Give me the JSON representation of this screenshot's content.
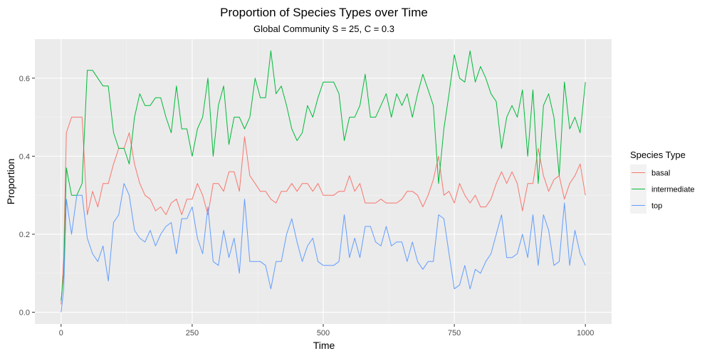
{
  "chart_data": {
    "type": "line",
    "title": "Proportion of Species Types over Time",
    "subtitle": "Global Community S = 25, C = 0.3",
    "xlabel": "Time",
    "ylabel": "Proportion",
    "xlim": [
      -50,
      1050
    ],
    "ylim": [
      -0.03,
      0.7
    ],
    "x_ticks": [
      0,
      250,
      500,
      750,
      1000
    ],
    "y_ticks": [
      0.0,
      0.2,
      0.4,
      0.6
    ],
    "x_tick_labels": [
      "0",
      "250",
      "500",
      "750",
      "1000"
    ],
    "y_tick_labels": [
      "0.0",
      "0.2",
      "0.4",
      "0.6"
    ],
    "grid": true,
    "legend_title": "Species Type",
    "legend_position": "right",
    "panel_background": "#ebebeb",
    "series": [
      {
        "name": "basal",
        "color": "#f8766d",
        "points": [
          [
            0,
            0.02
          ],
          [
            5,
            0.14
          ],
          [
            10,
            0.46
          ],
          [
            20,
            0.5
          ],
          [
            30,
            0.5
          ],
          [
            40,
            0.5
          ],
          [
            50,
            0.25
          ],
          [
            60,
            0.31
          ],
          [
            70,
            0.27
          ],
          [
            80,
            0.33
          ],
          [
            90,
            0.33
          ],
          [
            100,
            0.38
          ],
          [
            110,
            0.42
          ],
          [
            120,
            0.42
          ],
          [
            130,
            0.46
          ],
          [
            140,
            0.38
          ],
          [
            150,
            0.33
          ],
          [
            160,
            0.3
          ],
          [
            170,
            0.29
          ],
          [
            180,
            0.26
          ],
          [
            190,
            0.27
          ],
          [
            200,
            0.25
          ],
          [
            210,
            0.28
          ],
          [
            220,
            0.29
          ],
          [
            230,
            0.25
          ],
          [
            240,
            0.29
          ],
          [
            250,
            0.29
          ],
          [
            260,
            0.33
          ],
          [
            270,
            0.3
          ],
          [
            280,
            0.25
          ],
          [
            290,
            0.33
          ],
          [
            300,
            0.33
          ],
          [
            310,
            0.31
          ],
          [
            320,
            0.36
          ],
          [
            330,
            0.36
          ],
          [
            340,
            0.31
          ],
          [
            350,
            0.45
          ],
          [
            360,
            0.35
          ],
          [
            370,
            0.33
          ],
          [
            380,
            0.31
          ],
          [
            390,
            0.31
          ],
          [
            400,
            0.29
          ],
          [
            410,
            0.28
          ],
          [
            420,
            0.31
          ],
          [
            430,
            0.31
          ],
          [
            440,
            0.33
          ],
          [
            450,
            0.31
          ],
          [
            460,
            0.33
          ],
          [
            470,
            0.33
          ],
          [
            480,
            0.31
          ],
          [
            490,
            0.33
          ],
          [
            500,
            0.3
          ],
          [
            510,
            0.3
          ],
          [
            520,
            0.3
          ],
          [
            530,
            0.31
          ],
          [
            540,
            0.31
          ],
          [
            550,
            0.35
          ],
          [
            560,
            0.31
          ],
          [
            570,
            0.33
          ],
          [
            580,
            0.28
          ],
          [
            590,
            0.28
          ],
          [
            600,
            0.28
          ],
          [
            610,
            0.29
          ],
          [
            620,
            0.28
          ],
          [
            630,
            0.28
          ],
          [
            640,
            0.28
          ],
          [
            650,
            0.29
          ],
          [
            660,
            0.31
          ],
          [
            670,
            0.31
          ],
          [
            680,
            0.3
          ],
          [
            690,
            0.27
          ],
          [
            700,
            0.3
          ],
          [
            710,
            0.34
          ],
          [
            720,
            0.4
          ],
          [
            730,
            0.3
          ],
          [
            740,
            0.31
          ],
          [
            750,
            0.28
          ],
          [
            760,
            0.33
          ],
          [
            770,
            0.3
          ],
          [
            780,
            0.28
          ],
          [
            790,
            0.3
          ],
          [
            800,
            0.27
          ],
          [
            810,
            0.27
          ],
          [
            820,
            0.29
          ],
          [
            830,
            0.33
          ],
          [
            840,
            0.36
          ],
          [
            850,
            0.33
          ],
          [
            860,
            0.36
          ],
          [
            870,
            0.33
          ],
          [
            880,
            0.26
          ],
          [
            890,
            0.33
          ],
          [
            900,
            0.33
          ],
          [
            910,
            0.42
          ],
          [
            920,
            0.35
          ],
          [
            930,
            0.31
          ],
          [
            940,
            0.34
          ],
          [
            950,
            0.35
          ],
          [
            960,
            0.29
          ],
          [
            970,
            0.33
          ],
          [
            980,
            0.35
          ],
          [
            990,
            0.38
          ],
          [
            1000,
            0.3
          ]
        ]
      },
      {
        "name": "intermediate",
        "color": "#00ba38",
        "points": [
          [
            0,
            0.03
          ],
          [
            5,
            0.1
          ],
          [
            10,
            0.37
          ],
          [
            20,
            0.3
          ],
          [
            30,
            0.3
          ],
          [
            40,
            0.33
          ],
          [
            50,
            0.62
          ],
          [
            60,
            0.62
          ],
          [
            70,
            0.6
          ],
          [
            80,
            0.58
          ],
          [
            90,
            0.58
          ],
          [
            100,
            0.46
          ],
          [
            110,
            0.42
          ],
          [
            120,
            0.42
          ],
          [
            130,
            0.38
          ],
          [
            140,
            0.5
          ],
          [
            150,
            0.56
          ],
          [
            160,
            0.53
          ],
          [
            170,
            0.53
          ],
          [
            180,
            0.55
          ],
          [
            190,
            0.55
          ],
          [
            200,
            0.5
          ],
          [
            210,
            0.46
          ],
          [
            220,
            0.58
          ],
          [
            230,
            0.47
          ],
          [
            240,
            0.47
          ],
          [
            250,
            0.4
          ],
          [
            260,
            0.47
          ],
          [
            270,
            0.5
          ],
          [
            280,
            0.6
          ],
          [
            290,
            0.4
          ],
          [
            300,
            0.53
          ],
          [
            310,
            0.58
          ],
          [
            320,
            0.43
          ],
          [
            330,
            0.5
          ],
          [
            340,
            0.5
          ],
          [
            350,
            0.47
          ],
          [
            360,
            0.5
          ],
          [
            370,
            0.6
          ],
          [
            380,
            0.55
          ],
          [
            390,
            0.55
          ],
          [
            400,
            0.67
          ],
          [
            410,
            0.56
          ],
          [
            420,
            0.58
          ],
          [
            430,
            0.53
          ],
          [
            440,
            0.47
          ],
          [
            450,
            0.44
          ],
          [
            460,
            0.46
          ],
          [
            470,
            0.53
          ],
          [
            480,
            0.5
          ],
          [
            490,
            0.55
          ],
          [
            500,
            0.59
          ],
          [
            510,
            0.59
          ],
          [
            520,
            0.59
          ],
          [
            530,
            0.56
          ],
          [
            540,
            0.44
          ],
          [
            550,
            0.5
          ],
          [
            560,
            0.5
          ],
          [
            570,
            0.53
          ],
          [
            580,
            0.61
          ],
          [
            590,
            0.5
          ],
          [
            600,
            0.5
          ],
          [
            610,
            0.53
          ],
          [
            620,
            0.56
          ],
          [
            630,
            0.5
          ],
          [
            640,
            0.56
          ],
          [
            650,
            0.53
          ],
          [
            660,
            0.56
          ],
          [
            670,
            0.5
          ],
          [
            680,
            0.56
          ],
          [
            690,
            0.61
          ],
          [
            700,
            0.57
          ],
          [
            710,
            0.53
          ],
          [
            720,
            0.33
          ],
          [
            730,
            0.47
          ],
          [
            740,
            0.56
          ],
          [
            750,
            0.66
          ],
          [
            760,
            0.6
          ],
          [
            770,
            0.59
          ],
          [
            780,
            0.67
          ],
          [
            790,
            0.59
          ],
          [
            800,
            0.63
          ],
          [
            810,
            0.6
          ],
          [
            820,
            0.56
          ],
          [
            830,
            0.54
          ],
          [
            840,
            0.42
          ],
          [
            850,
            0.5
          ],
          [
            860,
            0.53
          ],
          [
            870,
            0.5
          ],
          [
            880,
            0.57
          ],
          [
            890,
            0.4
          ],
          [
            900,
            0.57
          ],
          [
            910,
            0.33
          ],
          [
            920,
            0.53
          ],
          [
            930,
            0.56
          ],
          [
            940,
            0.5
          ],
          [
            950,
            0.35
          ],
          [
            960,
            0.59
          ],
          [
            970,
            0.47
          ],
          [
            980,
            0.5
          ],
          [
            990,
            0.46
          ],
          [
            1000,
            0.59
          ]
        ]
      },
      {
        "name": "top",
        "color": "#619cff",
        "points": [
          [
            0,
            0.0
          ],
          [
            5,
            0.06
          ],
          [
            10,
            0.29
          ],
          [
            20,
            0.2
          ],
          [
            30,
            0.3
          ],
          [
            40,
            0.3
          ],
          [
            50,
            0.19
          ],
          [
            60,
            0.15
          ],
          [
            70,
            0.13
          ],
          [
            80,
            0.17
          ],
          [
            90,
            0.08
          ],
          [
            100,
            0.23
          ],
          [
            110,
            0.25
          ],
          [
            120,
            0.33
          ],
          [
            130,
            0.3
          ],
          [
            140,
            0.21
          ],
          [
            150,
            0.19
          ],
          [
            160,
            0.18
          ],
          [
            170,
            0.21
          ],
          [
            180,
            0.17
          ],
          [
            190,
            0.2
          ],
          [
            200,
            0.22
          ],
          [
            210,
            0.23
          ],
          [
            220,
            0.15
          ],
          [
            230,
            0.24
          ],
          [
            240,
            0.24
          ],
          [
            250,
            0.27
          ],
          [
            260,
            0.19
          ],
          [
            270,
            0.15
          ],
          [
            280,
            0.27
          ],
          [
            290,
            0.13
          ],
          [
            300,
            0.12
          ],
          [
            310,
            0.21
          ],
          [
            320,
            0.14
          ],
          [
            330,
            0.19
          ],
          [
            340,
            0.1
          ],
          [
            350,
            0.29
          ],
          [
            360,
            0.13
          ],
          [
            370,
            0.13
          ],
          [
            380,
            0.13
          ],
          [
            390,
            0.12
          ],
          [
            400,
            0.06
          ],
          [
            410,
            0.13
          ],
          [
            420,
            0.13
          ],
          [
            430,
            0.2
          ],
          [
            440,
            0.24
          ],
          [
            450,
            0.18
          ],
          [
            460,
            0.13
          ],
          [
            470,
            0.17
          ],
          [
            480,
            0.19
          ],
          [
            490,
            0.13
          ],
          [
            500,
            0.12
          ],
          [
            510,
            0.12
          ],
          [
            520,
            0.12
          ],
          [
            530,
            0.13
          ],
          [
            540,
            0.25
          ],
          [
            550,
            0.14
          ],
          [
            560,
            0.19
          ],
          [
            570,
            0.14
          ],
          [
            580,
            0.22
          ],
          [
            590,
            0.22
          ],
          [
            600,
            0.18
          ],
          [
            610,
            0.17
          ],
          [
            620,
            0.22
          ],
          [
            630,
            0.17
          ],
          [
            640,
            0.18
          ],
          [
            650,
            0.18
          ],
          [
            660,
            0.13
          ],
          [
            670,
            0.18
          ],
          [
            680,
            0.13
          ],
          [
            690,
            0.11
          ],
          [
            700,
            0.13
          ],
          [
            710,
            0.13
          ],
          [
            720,
            0.25
          ],
          [
            730,
            0.24
          ],
          [
            740,
            0.15
          ],
          [
            750,
            0.06
          ],
          [
            760,
            0.07
          ],
          [
            770,
            0.12
          ],
          [
            780,
            0.06
          ],
          [
            790,
            0.11
          ],
          [
            800,
            0.1
          ],
          [
            810,
            0.13
          ],
          [
            820,
            0.15
          ],
          [
            830,
            0.2
          ],
          [
            840,
            0.25
          ],
          [
            850,
            0.14
          ],
          [
            860,
            0.14
          ],
          [
            870,
            0.15
          ],
          [
            880,
            0.2
          ],
          [
            890,
            0.14
          ],
          [
            900,
            0.25
          ],
          [
            910,
            0.12
          ],
          [
            920,
            0.25
          ],
          [
            930,
            0.21
          ],
          [
            940,
            0.12
          ],
          [
            950,
            0.13
          ],
          [
            960,
            0.28
          ],
          [
            970,
            0.12
          ],
          [
            980,
            0.21
          ],
          [
            990,
            0.15
          ],
          [
            1000,
            0.12
          ]
        ]
      }
    ]
  }
}
